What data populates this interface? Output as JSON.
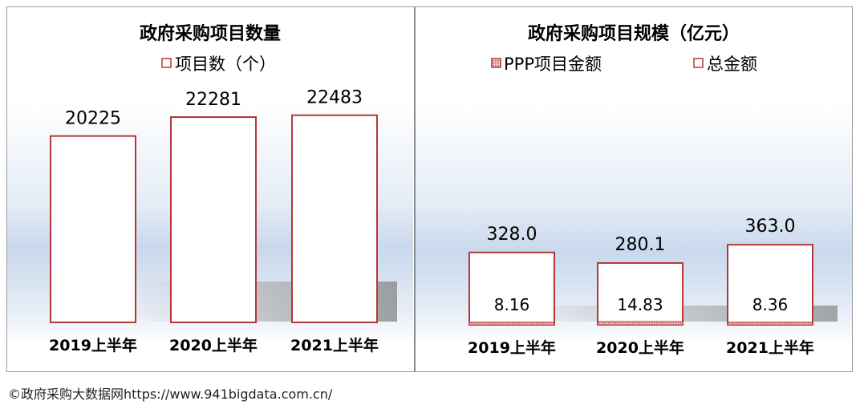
{
  "chart_data": [
    {
      "type": "bar",
      "title": "政府采购项目数量",
      "categories": [
        "2019上半年",
        "2020上半年",
        "2021上半年"
      ],
      "series": [
        {
          "name": "项目数（个）",
          "values": [
            20225,
            22281,
            22483
          ]
        }
      ],
      "value_labels": [
        "20225",
        "22281",
        "22483"
      ],
      "ylim": [
        0,
        23500
      ],
      "grid": false,
      "legend_position": "top-center",
      "colors": {
        "bar_border": "#b5373a",
        "bar_fill": "#ffffff"
      }
    },
    {
      "type": "bar",
      "title": "政府采购项目规模（亿元）",
      "categories": [
        "2019上半年",
        "2020上半年",
        "2021上半年"
      ],
      "series": [
        {
          "name": "PPP项目金额",
          "values": [
            8.16,
            14.83,
            8.36
          ]
        },
        {
          "name": "总金额",
          "values": [
            328.0,
            280.1,
            363.0
          ]
        }
      ],
      "ppp_labels": [
        "8.16",
        "14.83",
        "8.36"
      ],
      "total_labels": [
        "328.0",
        "280.1",
        "363.0"
      ],
      "ylim": [
        0,
        1200
      ],
      "grid": false,
      "legend_position": "top-center",
      "colors": {
        "bar_border": "#b5373a",
        "ppp_fill": "#c0504d",
        "bar_fill": "#ffffff"
      }
    }
  ],
  "footer": "©政府采购大数据网https://www.941bigdata.com.cn/"
}
